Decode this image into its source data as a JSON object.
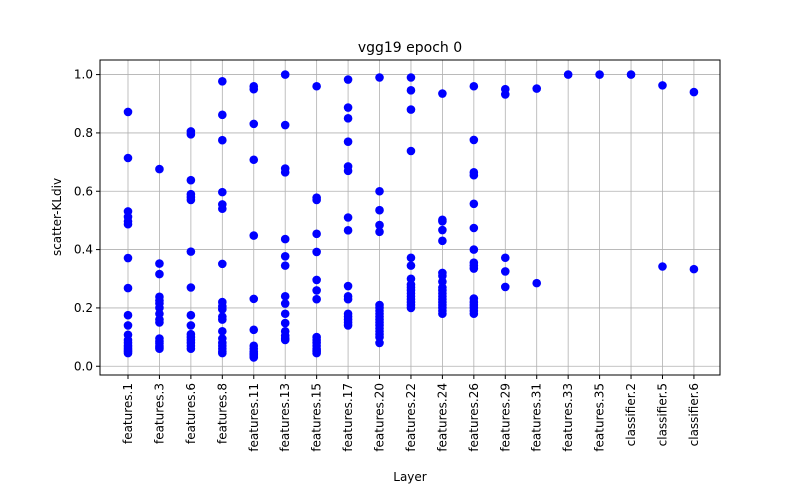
{
  "chart_data": {
    "type": "scatter",
    "title": "vgg19 epoch 0",
    "xlabel": "Layer",
    "ylabel": "scatter-KLdiv",
    "ylim": [
      -0.03,
      1.05
    ],
    "yticks": [
      "0.0",
      "0.2",
      "0.4",
      "0.6",
      "0.8",
      "1.0"
    ],
    "grid": true,
    "marker_color": "#0000ff",
    "categories": [
      "features.1",
      "features.3",
      "features.6",
      "features.8",
      "features.11",
      "features.13",
      "features.15",
      "features.17",
      "features.20",
      "features.22",
      "features.24",
      "features.26",
      "features.29",
      "features.31",
      "features.33",
      "features.35",
      "classifier.2",
      "classifier.5",
      "classifier.6"
    ],
    "points": [
      {
        "x": "features.1",
        "y": [
          0.872,
          0.714,
          0.531,
          0.512,
          0.497,
          0.487,
          0.371,
          0.268,
          0.175,
          0.14,
          0.108,
          0.09,
          0.08,
          0.072,
          0.066,
          0.06,
          0.055,
          0.05,
          0.045
        ]
      },
      {
        "x": "features.3",
        "y": [
          0.676,
          0.352,
          0.316,
          0.238,
          0.225,
          0.215,
          0.2,
          0.18,
          0.16,
          0.15,
          0.095,
          0.085,
          0.078,
          0.07,
          0.065,
          0.06
        ]
      },
      {
        "x": "features.6",
        "y": [
          0.805,
          0.795,
          0.638,
          0.59,
          0.58,
          0.57,
          0.393,
          0.27,
          0.175,
          0.14,
          0.11,
          0.1,
          0.09,
          0.08,
          0.07,
          0.06
        ]
      },
      {
        "x": "features.8",
        "y": [
          0.977,
          0.862,
          0.775,
          0.597,
          0.555,
          0.54,
          0.351,
          0.22,
          0.205,
          0.195,
          0.17,
          0.16,
          0.12,
          0.095,
          0.08,
          0.07,
          0.06,
          0.05,
          0.045
        ]
      },
      {
        "x": "features.11",
        "y": [
          0.96,
          0.95,
          0.831,
          0.708,
          0.448,
          0.231,
          0.125,
          0.07,
          0.06,
          0.05,
          0.045,
          0.04,
          0.035,
          0.03
        ]
      },
      {
        "x": "features.13",
        "y": [
          1.0,
          0.827,
          0.678,
          0.665,
          0.436,
          0.377,
          0.345,
          0.24,
          0.215,
          0.18,
          0.148,
          0.12,
          0.105,
          0.095,
          0.09
        ]
      },
      {
        "x": "features.15",
        "y": [
          0.96,
          0.578,
          0.57,
          0.454,
          0.392,
          0.296,
          0.26,
          0.23,
          0.1,
          0.09,
          0.08,
          0.07,
          0.06,
          0.055,
          0.05,
          0.045
        ]
      },
      {
        "x": "features.17",
        "y": [
          0.983,
          0.887,
          0.85,
          0.77,
          0.685,
          0.67,
          0.51,
          0.466,
          0.275,
          0.24,
          0.23,
          0.18,
          0.17,
          0.16,
          0.15,
          0.14
        ]
      },
      {
        "x": "features.20",
        "y": [
          0.99,
          0.6,
          0.535,
          0.484,
          0.461,
          0.21,
          0.2,
          0.19,
          0.18,
          0.17,
          0.16,
          0.15,
          0.14,
          0.13,
          0.12,
          0.11,
          0.1,
          0.08
        ]
      },
      {
        "x": "features.22",
        "y": [
          0.99,
          0.946,
          0.88,
          0.738,
          0.372,
          0.345,
          0.3,
          0.28,
          0.27,
          0.26,
          0.25,
          0.24,
          0.23,
          0.22,
          0.21,
          0.2
        ]
      },
      {
        "x": "features.24",
        "y": [
          0.935,
          0.502,
          0.497,
          0.467,
          0.43,
          0.32,
          0.31,
          0.29,
          0.27,
          0.26,
          0.25,
          0.24,
          0.23,
          0.22,
          0.21,
          0.2,
          0.19,
          0.18
        ]
      },
      {
        "x": "features.26",
        "y": [
          0.96,
          0.776,
          0.665,
          0.655,
          0.557,
          0.474,
          0.4,
          0.355,
          0.345,
          0.335,
          0.232,
          0.22,
          0.21,
          0.2,
          0.19,
          0.18
        ]
      },
      {
        "x": "features.29",
        "y": [
          0.95,
          0.932,
          0.372,
          0.325,
          0.272
        ]
      },
      {
        "x": "features.31",
        "y": [
          0.952,
          0.285
        ]
      },
      {
        "x": "features.33",
        "y": [
          1.0
        ]
      },
      {
        "x": "features.35",
        "y": [
          1.0
        ]
      },
      {
        "x": "classifier.2",
        "y": [
          1.0
        ]
      },
      {
        "x": "classifier.5",
        "y": [
          0.963,
          0.342
        ]
      },
      {
        "x": "classifier.6",
        "y": [
          0.94,
          0.333
        ]
      }
    ]
  }
}
